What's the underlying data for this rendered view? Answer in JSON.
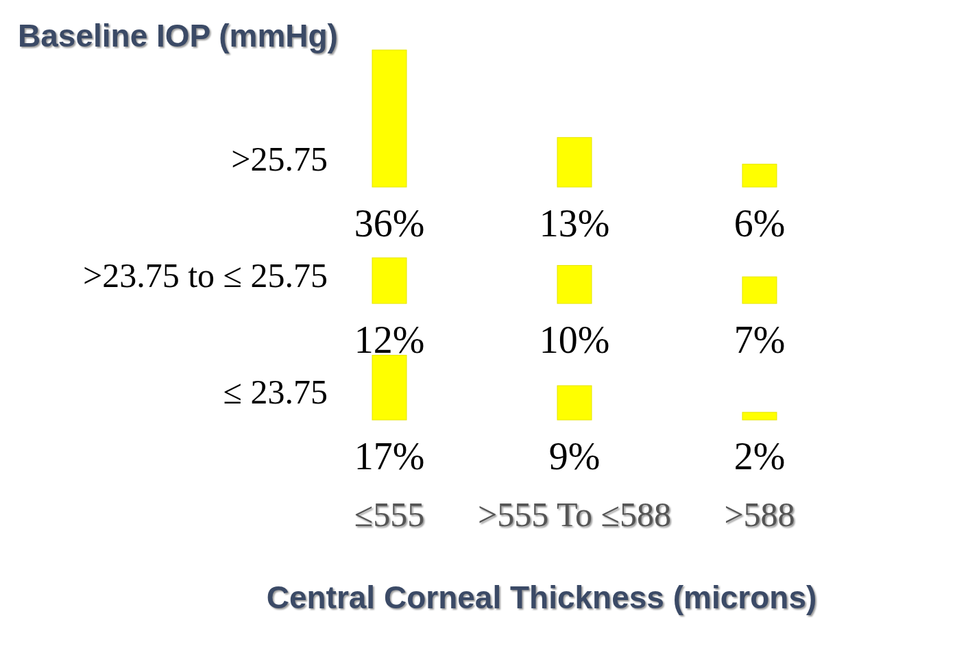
{
  "chart_data": [
    {
      "type": "bar",
      "annotations": [
        "Baseline IOP (mmHg)"
      ],
      "categories": [
        null,
        null,
        null
      ],
      "series": [
        {
          "name": ">25.75",
          "color": "#ffff00",
          "values": [
            36,
            13,
            6
          ],
          "value_labels": [
            "36%",
            "13%",
            "6%"
          ]
        }
      ]
    },
    {
      "type": "bar",
      "categories": [
        null,
        null,
        null
      ],
      "series": [
        {
          "name": ">23.75 to ≤ 25.75",
          "color": "#ffff00",
          "values": [
            12,
            10,
            7
          ],
          "value_labels": [
            "12%",
            "10%",
            "7%"
          ]
        }
      ]
    },
    {
      "type": "bar",
      "xlabel": "Central Corneal Thickness (microns)",
      "categories": [
        "≤555",
        ">555 To ≤588",
        ">588"
      ],
      "series": [
        {
          "name": "≤ 23.75",
          "color": "#ffff00",
          "values": [
            17,
            9,
            2
          ],
          "value_labels": [
            "17%",
            "9%",
            "2%"
          ]
        }
      ]
    }
  ]
}
